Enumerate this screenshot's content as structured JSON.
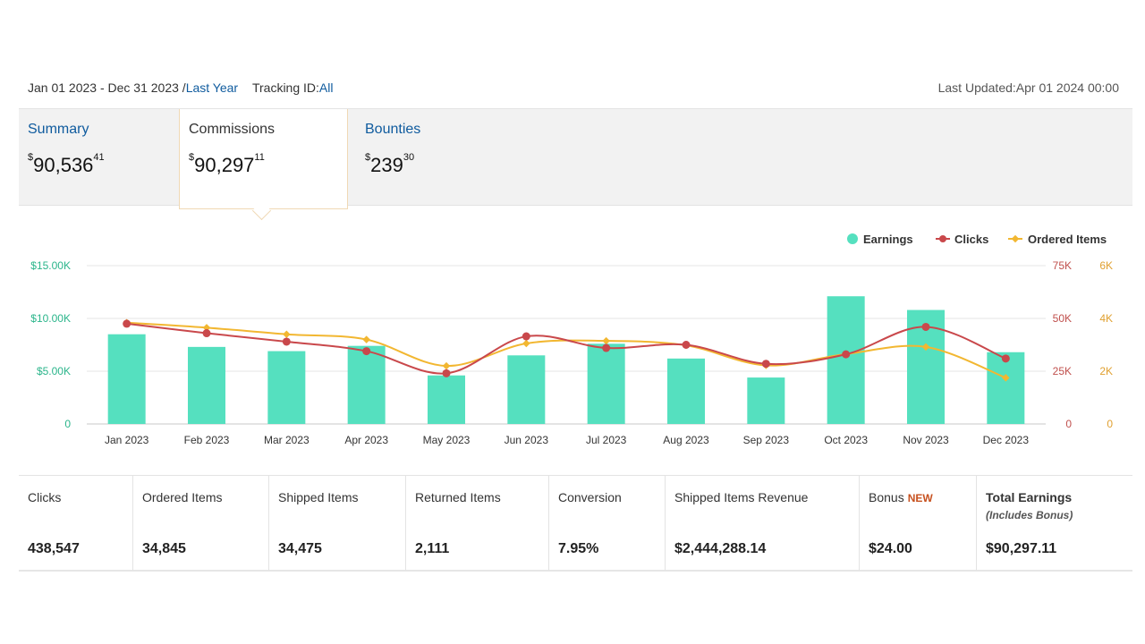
{
  "header": {
    "date_range": "Jan 01 2023 - Dec 31 2023 /",
    "period_link": "Last Year",
    "tracking_label": "Tracking ID:",
    "tracking_value": "All",
    "last_updated": "Last Updated:Apr 01 2024 00:00"
  },
  "tabs": [
    {
      "label": "Summary",
      "currency": "$",
      "whole": "90,536",
      "cents": "41"
    },
    {
      "label": "Commissions",
      "currency": "$",
      "whole": "90,297",
      "cents": "11"
    },
    {
      "label": "Bounties",
      "currency": "$",
      "whole": "239",
      "cents": "30"
    }
  ],
  "colors": {
    "earnings": "#55e0bf",
    "clicks": "#c9484b",
    "ordered": "#f2b731",
    "left_axis": "#2bb58b",
    "link": "#0f5b9e"
  },
  "chart_data": {
    "type": "bar",
    "legend": [
      "Earnings",
      "Clicks",
      "Ordered Items"
    ],
    "legend_position": "top-right",
    "categories": [
      "Jan 2023",
      "Feb 2023",
      "Mar 2023",
      "Apr 2023",
      "May 2023",
      "Jun 2023",
      "Jul 2023",
      "Aug 2023",
      "Sep 2023",
      "Oct 2023",
      "Nov 2023",
      "Dec 2023"
    ],
    "left_ticks": [
      "0",
      "$5.00K",
      "$10.00K",
      "$15.00K"
    ],
    "left_ylim": [
      0,
      15000
    ],
    "right1_ticks": [
      "0",
      "25K",
      "50K",
      "75K"
    ],
    "right1_ylim": [
      0,
      75000
    ],
    "right2_ticks": [
      "0",
      "2K",
      "4K",
      "6K"
    ],
    "right2_ylim": [
      0,
      6000
    ],
    "series": [
      {
        "name": "Earnings",
        "type": "bar",
        "axis": "left",
        "values": [
          8500,
          7300,
          6900,
          7400,
          4600,
          6500,
          7600,
          6200,
          4400,
          12100,
          10800,
          6800
        ]
      },
      {
        "name": "Clicks",
        "type": "line",
        "axis": "right1",
        "values": [
          47500,
          43000,
          39000,
          34500,
          24000,
          41500,
          36000,
          37500,
          28500,
          33000,
          46000,
          31000
        ]
      },
      {
        "name": "Ordered Items",
        "type": "line",
        "axis": "right2",
        "values": [
          3840,
          3650,
          3400,
          3200,
          2200,
          3050,
          3150,
          2980,
          2220,
          2650,
          2920,
          1750
        ]
      }
    ]
  },
  "stats": [
    {
      "label": "Clicks",
      "value": "438,547"
    },
    {
      "label": "Ordered Items",
      "value": "34,845"
    },
    {
      "label": "Shipped Items",
      "value": "34,475"
    },
    {
      "label": "Returned Items",
      "value": "2,111"
    },
    {
      "label": "Conversion",
      "value": "7.95%"
    },
    {
      "label": "Shipped Items Revenue",
      "value": "$2,444,288.14"
    },
    {
      "label": "Bonus",
      "badge": "NEW",
      "value": "$24.00"
    },
    {
      "label": "Total Earnings",
      "sub": "(Includes Bonus)",
      "value": "$90,297.11"
    }
  ]
}
